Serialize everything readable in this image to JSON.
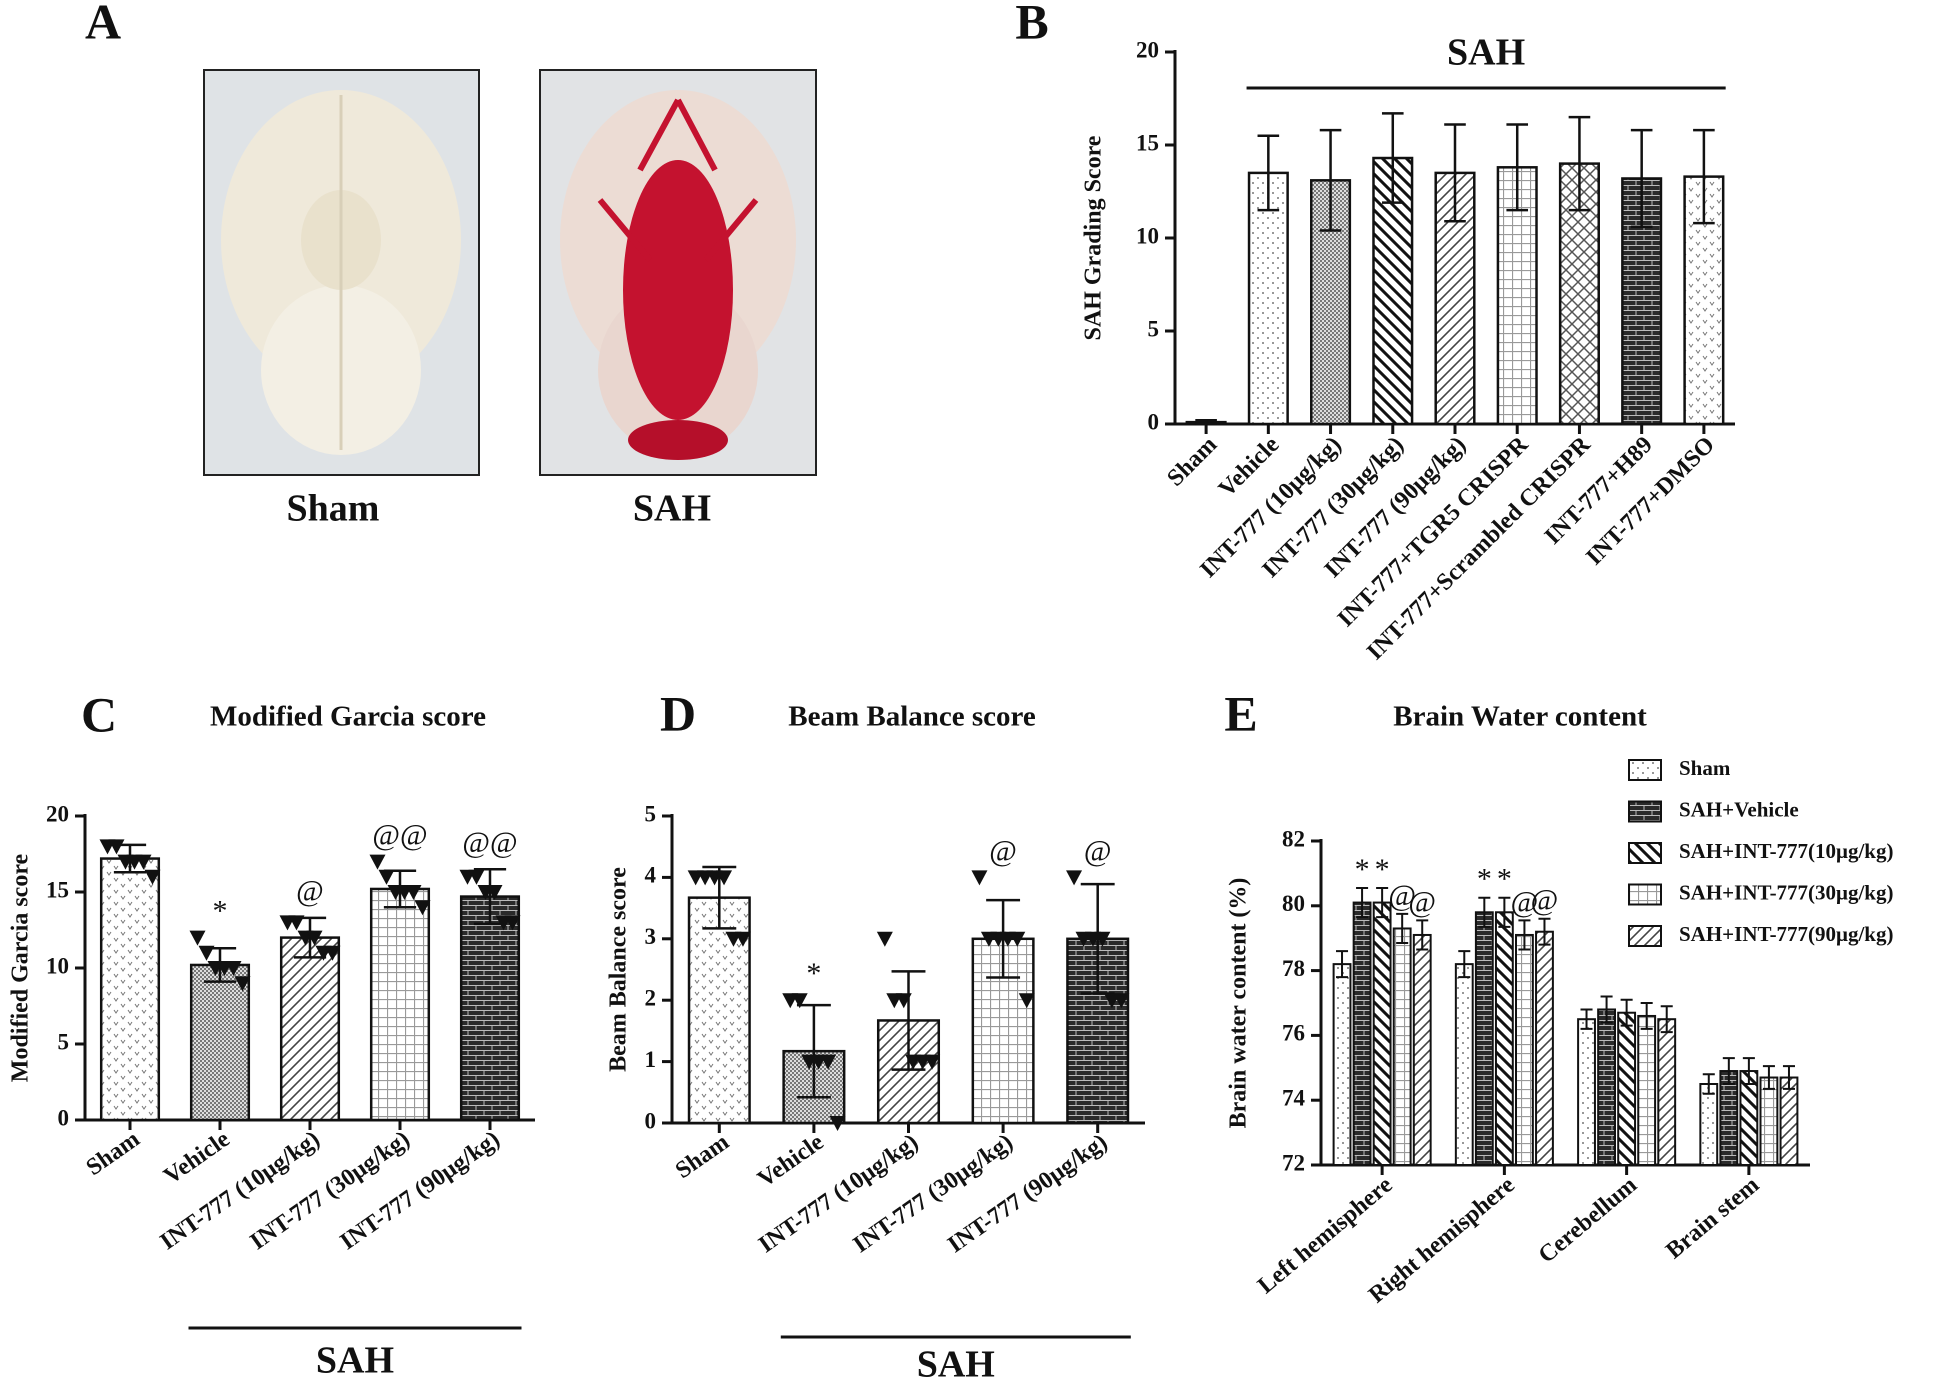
{
  "panel_a": {
    "label": "A",
    "captions": [
      "Sham",
      "SAH"
    ]
  },
  "chart_data": [
    {
      "type": "bar",
      "panel": "B",
      "ylabel": "SAH Grading Score",
      "categories": [
        "Sham",
        "Vehicle",
        "INT-777 (10μg/kg)",
        "INT-777 (30μg/kg)",
        "INT-777 (90μg/kg)",
        "INT-777+TGR5 CRISPR",
        "INT-777+Scrambled CRISPR",
        "INT-777+H89",
        "INT-777+DMSO"
      ],
      "values": [
        0.1,
        13.5,
        13.1,
        14.3,
        13.5,
        13.8,
        14.0,
        13.2,
        13.3
      ],
      "errors": [
        0.1,
        2.0,
        2.7,
        2.4,
        2.6,
        2.3,
        2.5,
        2.6,
        2.5
      ],
      "patterns": [
        "solid",
        "dots",
        "checker",
        "hatch-back",
        "hatch",
        "grid",
        "diamond",
        "brick",
        "vee"
      ],
      "group_label": "SAH",
      "ylim": [
        0,
        20
      ],
      "yticks": [
        0,
        5,
        10,
        15,
        20
      ]
    },
    {
      "type": "bar",
      "panel": "C",
      "title": "Modified Garcia score",
      "ylabel": "Modified Garcia score",
      "categories": [
        "Sham",
        "Vehicle",
        "INT-777 (10μg/kg)",
        "INT-777 (30μg/kg)",
        "INT-777 (90μg/kg)"
      ],
      "values": [
        17.2,
        10.2,
        12.0,
        15.2,
        14.7
      ],
      "errors": [
        0.9,
        1.1,
        1.3,
        1.2,
        1.8
      ],
      "points": [
        [
          18,
          18,
          17,
          17,
          17,
          16
        ],
        [
          12,
          11,
          10,
          10,
          10,
          9
        ],
        [
          13,
          13,
          12,
          12,
          11,
          11
        ],
        [
          17,
          16,
          15,
          15,
          15,
          14
        ],
        [
          16,
          16,
          15,
          15,
          13,
          13
        ]
      ],
      "patterns": [
        "vee",
        "checker",
        "hatch",
        "grid",
        "brick"
      ],
      "annotations": [
        {
          "text": "*",
          "category": 1
        },
        {
          "text": "@",
          "category": 2
        },
        {
          "text": "@@",
          "category": 3
        },
        {
          "text": "@@",
          "category": 4
        }
      ],
      "group_label": "SAH",
      "ylim": [
        0,
        20
      ],
      "yticks": [
        0,
        5,
        10,
        15,
        20
      ]
    },
    {
      "type": "bar",
      "panel": "D",
      "title": "Beam Balance score",
      "ylabel": "Beam Balance score",
      "categories": [
        "Sham",
        "Vehicle",
        "INT-777 (10μg/kg)",
        "INT-777 (30μg/kg)",
        "INT-777 (90μg/kg)"
      ],
      "values": [
        3.67,
        1.17,
        1.67,
        3.0,
        3.0
      ],
      "errors": [
        0.5,
        0.75,
        0.8,
        0.63,
        0.89
      ],
      "points": [
        [
          4,
          4,
          4,
          4,
          3,
          3
        ],
        [
          2,
          2,
          1,
          1,
          1,
          0
        ],
        [
          3,
          2,
          2,
          1,
          1,
          1
        ],
        [
          4,
          3,
          3,
          3,
          3,
          2
        ],
        [
          4,
          3,
          3,
          3,
          2,
          2
        ]
      ],
      "patterns": [
        "vee",
        "checker",
        "hatch",
        "grid",
        "brick"
      ],
      "annotations": [
        {
          "text": "*",
          "category": 1
        },
        {
          "text": "@",
          "category": 3
        },
        {
          "text": "@",
          "category": 4
        }
      ],
      "group_label": "SAH",
      "ylim": [
        0,
        5
      ],
      "yticks": [
        0,
        1,
        2,
        3,
        4,
        5
      ]
    },
    {
      "type": "grouped_bar",
      "panel": "E",
      "title": "Brain Water content",
      "ylabel": "Brain water content (%)",
      "categories": [
        "Left hemisphere",
        "Right hemisphere",
        "Cerebellum",
        "Brain stem"
      ],
      "series": [
        {
          "name": "Sham",
          "pattern": "dots",
          "values": [
            78.2,
            78.2,
            76.5,
            74.5
          ],
          "errors": [
            0.4,
            0.4,
            0.3,
            0.3
          ]
        },
        {
          "name": "SAH+Vehicle",
          "pattern": "brick",
          "values": [
            80.1,
            79.8,
            76.8,
            74.9
          ],
          "errors": [
            0.45,
            0.45,
            0.4,
            0.4
          ]
        },
        {
          "name": "SAH+INT-777(10μg/kg)",
          "pattern": "hatch-back",
          "values": [
            80.1,
            79.8,
            76.7,
            74.9
          ],
          "errors": [
            0.45,
            0.45,
            0.4,
            0.4
          ]
        },
        {
          "name": "SAH+INT-777(30μg/kg)",
          "pattern": "grid",
          "values": [
            79.3,
            79.1,
            76.6,
            74.7
          ],
          "errors": [
            0.45,
            0.45,
            0.4,
            0.35
          ]
        },
        {
          "name": "SAH+INT-777(90μg/kg)",
          "pattern": "hatch",
          "values": [
            79.1,
            79.2,
            76.5,
            74.7
          ],
          "errors": [
            0.45,
            0.4,
            0.4,
            0.35
          ]
        }
      ],
      "annotations": [
        {
          "text": "*",
          "category": 0,
          "series": 1
        },
        {
          "text": "*",
          "category": 0,
          "series": 2
        },
        {
          "text": "@",
          "category": 0,
          "series": 3
        },
        {
          "text": "@",
          "category": 0,
          "series": 4
        },
        {
          "text": "*",
          "category": 1,
          "series": 1
        },
        {
          "text": "*",
          "category": 1,
          "series": 2
        },
        {
          "text": "@",
          "category": 1,
          "series": 3
        },
        {
          "text": "@",
          "category": 1,
          "series": 4
        }
      ],
      "legend": "top-right",
      "ylim": [
        72,
        82
      ],
      "yticks": [
        72,
        74,
        76,
        78,
        80,
        82
      ]
    }
  ]
}
